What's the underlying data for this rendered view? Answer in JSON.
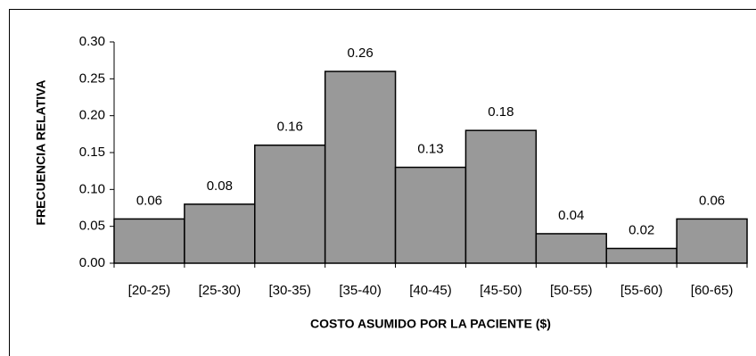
{
  "chart_data": {
    "type": "bar",
    "x_label": "COSTO ASUMIDO POR LA PACIENTE ($)",
    "y_label": "FRECUENCIA RELATIVA",
    "categories": [
      "[20-25)",
      "[25-30)",
      "[30-35)",
      "[35-40)",
      "[40-45)",
      "[45-50)",
      "[50-55)",
      "[55-60)",
      "[60-65)"
    ],
    "values": [
      0.06,
      0.08,
      0.16,
      0.26,
      0.13,
      0.18,
      0.04,
      0.02,
      0.06
    ],
    "color": "#999999",
    "ylim": [
      0,
      0.3
    ],
    "yticks": [
      {
        "value": 0,
        "label": "0.00"
      },
      {
        "value": 0.05,
        "label": "0.05"
      },
      {
        "value": 0.1,
        "label": "0.10"
      },
      {
        "value": 0.15,
        "label": "0.15"
      },
      {
        "value": 0.2,
        "label": "0.20"
      },
      {
        "value": 0.25,
        "label": "0.25"
      },
      {
        "value": 0.3,
        "label": "0.30"
      }
    ]
  }
}
